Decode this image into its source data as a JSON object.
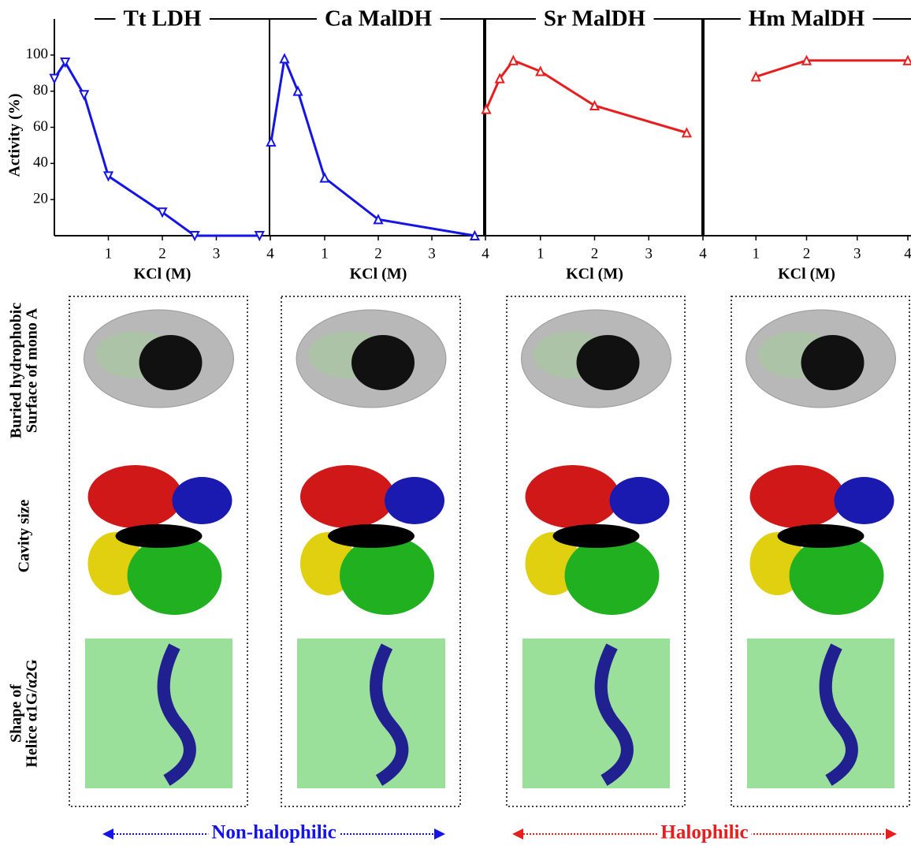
{
  "chart_data": [
    {
      "type": "line",
      "title": "Tt LDH",
      "x_label": "KCl (M)",
      "y_label": "Activity (%)",
      "color": "#1414e6",
      "marker": "triangle-down",
      "x": [
        0,
        0.2,
        0.55,
        1.0,
        2.0,
        2.6,
        3.8
      ],
      "values": [
        87,
        96,
        78,
        33,
        13,
        0,
        0
      ],
      "xlim": [
        0,
        4
      ],
      "xticks": [
        1,
        2,
        3,
        4
      ],
      "ylim": [
        0,
        120
      ],
      "yticks": [
        20,
        40,
        60,
        80,
        100
      ]
    },
    {
      "type": "line",
      "title": "Ca MalDH",
      "x_label": "KCl (M)",
      "color": "#1414e6",
      "marker": "triangle-up",
      "x": [
        0,
        0.25,
        0.5,
        1.0,
        2.0,
        3.8
      ],
      "values": [
        52,
        98,
        80,
        32,
        9,
        0
      ],
      "xlim": [
        0,
        4
      ],
      "xticks": [
        1,
        2,
        3,
        4
      ],
      "ylim": [
        0,
        120
      ]
    },
    {
      "type": "line",
      "title": "Sr MalDH",
      "x_label": "KCl (M)",
      "color": "#e61e1e",
      "marker": "triangle-up",
      "x": [
        0,
        0.25,
        0.5,
        1.0,
        2.0,
        3.7
      ],
      "values": [
        70,
        87,
        97,
        91,
        72,
        57
      ],
      "xlim": [
        0,
        4
      ],
      "xticks": [
        1,
        2,
        3,
        4
      ],
      "ylim": [
        0,
        120
      ]
    },
    {
      "type": "line",
      "title": "Hm MalDH",
      "x_label": "KCl (M)",
      "color": "#e61e1e",
      "marker": "triangle-up",
      "x": [
        1,
        2,
        4
      ],
      "values": [
        88,
        97,
        97
      ],
      "xlim": [
        0,
        4
      ],
      "xticks": [
        1,
        2,
        3,
        4
      ],
      "ylim": [
        0,
        120
      ]
    }
  ],
  "row_labels": [
    [
      "Buried hydrophobic",
      "Surface of mono A"
    ],
    [
      "Cavity size"
    ],
    [
      "Shape of",
      "Helice α1G/α2G"
    ]
  ],
  "groups": [
    {
      "label": "Non-halophilic",
      "color": "#1414e6"
    },
    {
      "label": "Halophilic",
      "color": "#e61e1e"
    }
  ]
}
